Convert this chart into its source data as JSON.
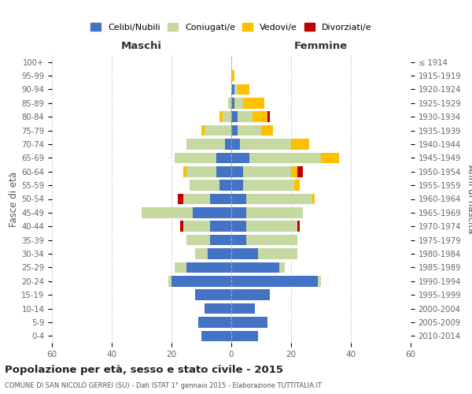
{
  "age_groups": [
    "0-4",
    "5-9",
    "10-14",
    "15-19",
    "20-24",
    "25-29",
    "30-34",
    "35-39",
    "40-44",
    "45-49",
    "50-54",
    "55-59",
    "60-64",
    "65-69",
    "70-74",
    "75-79",
    "80-84",
    "85-89",
    "90-94",
    "95-99",
    "100+"
  ],
  "birth_years": [
    "2010-2014",
    "2005-2009",
    "2000-2004",
    "1995-1999",
    "1990-1994",
    "1985-1989",
    "1980-1984",
    "1975-1979",
    "1970-1974",
    "1965-1969",
    "1960-1964",
    "1955-1959",
    "1950-1954",
    "1945-1949",
    "1940-1944",
    "1935-1939",
    "1930-1934",
    "1925-1929",
    "1920-1924",
    "1915-1919",
    "≤ 1914"
  ],
  "colors": {
    "celibi": "#4472c4",
    "coniugati": "#c5d9a0",
    "vedovi": "#ffc000",
    "divorziati": "#c00000"
  },
  "maschi": {
    "celibi": [
      10,
      11,
      9,
      12,
      20,
      15,
      8,
      7,
      7,
      13,
      7,
      4,
      5,
      5,
      2,
      0,
      0,
      0,
      0,
      0,
      0
    ],
    "coniugati": [
      0,
      0,
      0,
      0,
      1,
      4,
      4,
      8,
      9,
      17,
      9,
      10,
      10,
      14,
      13,
      9,
      3,
      1,
      0,
      0,
      0
    ],
    "vedovi": [
      0,
      0,
      0,
      0,
      0,
      0,
      0,
      0,
      0,
      0,
      0,
      0,
      1,
      0,
      0,
      1,
      1,
      0,
      0,
      0,
      0
    ],
    "divorziati": [
      0,
      0,
      0,
      0,
      0,
      0,
      0,
      0,
      1,
      0,
      2,
      0,
      0,
      0,
      0,
      0,
      0,
      0,
      0,
      0,
      0
    ]
  },
  "femmine": {
    "celibi": [
      9,
      12,
      8,
      13,
      29,
      16,
      9,
      5,
      5,
      5,
      5,
      4,
      4,
      6,
      3,
      2,
      2,
      1,
      1,
      0,
      0
    ],
    "coniugati": [
      0,
      0,
      0,
      0,
      1,
      2,
      13,
      17,
      17,
      19,
      22,
      17,
      16,
      24,
      17,
      8,
      5,
      3,
      1,
      0,
      0
    ],
    "vedovi": [
      0,
      0,
      0,
      0,
      0,
      0,
      0,
      0,
      0,
      0,
      1,
      2,
      2,
      6,
      6,
      4,
      5,
      7,
      4,
      1,
      0
    ],
    "divorziati": [
      0,
      0,
      0,
      0,
      0,
      0,
      0,
      0,
      1,
      0,
      0,
      0,
      2,
      0,
      0,
      0,
      1,
      0,
      0,
      0,
      0
    ]
  },
  "xlim": 60,
  "title": "Popolazione per età, sesso e stato civile - 2015",
  "subtitle": "COMUNE DI SAN NICOLÒ GERREI (SU) - Dati ISTAT 1° gennaio 2015 - Elaborazione TUTTITALIA.IT",
  "xlabel_left": "Maschi",
  "xlabel_right": "Femmine",
  "ylabel_left": "Fasce di età",
  "ylabel_right": "Anni di nascita",
  "legend_labels": [
    "Celibi/Nubili",
    "Coniugati/e",
    "Vedovi/e",
    "Divorziati/e"
  ],
  "background_color": "#ffffff",
  "grid_color": "#cccccc"
}
